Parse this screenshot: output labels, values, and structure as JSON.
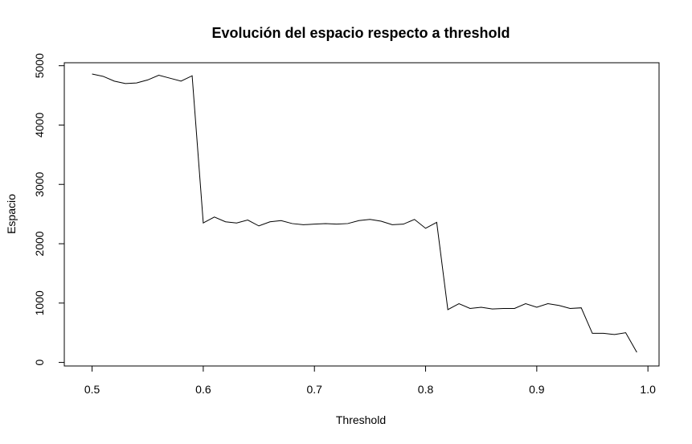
{
  "chart_data": {
    "type": "line",
    "title": "Evolución del espacio respecto a threshold",
    "xlabel": "Threshold",
    "ylabel": "Espacio",
    "xlim": [
      0.475,
      1.01
    ],
    "ylim": [
      -60,
      5050
    ],
    "x_ticks": [
      0.5,
      0.6,
      0.7,
      0.8,
      0.9,
      1.0
    ],
    "x_tick_labels": [
      "0.5",
      "0.6",
      "0.7",
      "0.8",
      "0.9",
      "1.0"
    ],
    "y_ticks": [
      0,
      1000,
      2000,
      3000,
      4000,
      5000
    ],
    "y_tick_labels": [
      "0",
      "1000",
      "2000",
      "3000",
      "4000",
      "5000"
    ],
    "grid": false,
    "series": [
      {
        "x": [
          0.5,
          0.51,
          0.52,
          0.53,
          0.54,
          0.55,
          0.56,
          0.57,
          0.58,
          0.59,
          0.6,
          0.61,
          0.62,
          0.63,
          0.64,
          0.65,
          0.66,
          0.67,
          0.68,
          0.69,
          0.7,
          0.71,
          0.72,
          0.73,
          0.74,
          0.75,
          0.76,
          0.77,
          0.78,
          0.79,
          0.8,
          0.81,
          0.82,
          0.83,
          0.84,
          0.85,
          0.86,
          0.87,
          0.88,
          0.89,
          0.9,
          0.91,
          0.92,
          0.93,
          0.94,
          0.95,
          0.96,
          0.97,
          0.98,
          0.99
        ],
        "values": [
          4860,
          4820,
          4740,
          4700,
          4710,
          4760,
          4840,
          4790,
          4740,
          4830,
          2350,
          2450,
          2370,
          2350,
          2400,
          2300,
          2370,
          2390,
          2340,
          2320,
          2330,
          2340,
          2330,
          2340,
          2390,
          2410,
          2380,
          2320,
          2330,
          2410,
          2260,
          2360,
          890,
          990,
          910,
          930,
          900,
          910,
          910,
          990,
          930,
          990,
          960,
          910,
          920,
          490,
          490,
          470,
          500,
          170
        ],
        "color": "#000000"
      }
    ]
  }
}
